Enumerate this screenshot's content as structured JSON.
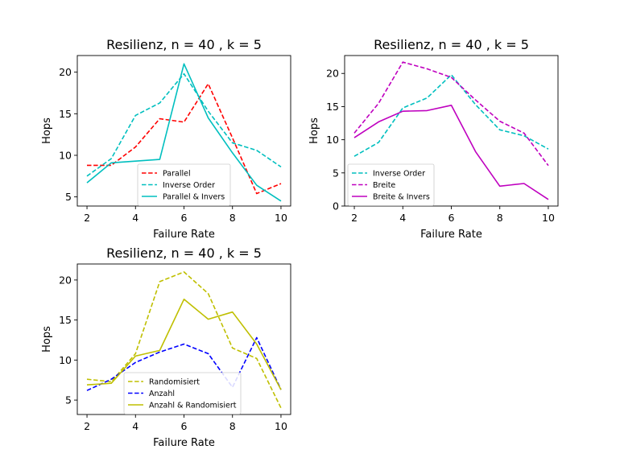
{
  "chart_data": [
    {
      "type": "line",
      "title": "Resilienz, n = 40 , k = 5",
      "xlabel": "Failure Rate",
      "ylabel": "Hops",
      "x": [
        2,
        3,
        4,
        5,
        6,
        7,
        8,
        9,
        10
      ],
      "xlim": [
        1.6,
        10.4
      ],
      "ylim": [
        3.9,
        22.0
      ],
      "xticks": [
        2,
        4,
        6,
        8,
        10
      ],
      "yticks": [
        5,
        10,
        15,
        20
      ],
      "legend": "lower-right",
      "series": [
        {
          "name": "Parallel",
          "color": "#ff0000",
          "style": "dashed",
          "values": [
            8.8,
            8.8,
            11.0,
            14.4,
            14.0,
            18.6,
            12.1,
            5.4,
            6.6
          ]
        },
        {
          "name": "Inverse Order",
          "color": "#00bfbf",
          "style": "dashed",
          "values": [
            7.5,
            9.6,
            14.8,
            16.3,
            19.8,
            15.3,
            11.5,
            10.6,
            8.6
          ]
        },
        {
          "name": "Parallel & Invers",
          "color": "#00bfbf",
          "style": "solid",
          "values": [
            6.7,
            9.1,
            9.3,
            9.5,
            21.0,
            14.5,
            10.3,
            6.4,
            4.5
          ]
        }
      ]
    },
    {
      "type": "line",
      "title": "Resilienz, n = 40 , k = 5",
      "xlabel": "Failure Rate",
      "ylabel": "Hops",
      "x": [
        2,
        3,
        4,
        5,
        6,
        7,
        8,
        9,
        10
      ],
      "xlim": [
        1.6,
        10.4
      ],
      "ylim": [
        0.0,
        22.7
      ],
      "xticks": [
        2,
        4,
        6,
        8,
        10
      ],
      "yticks": [
        0,
        5,
        10,
        15,
        20
      ],
      "legend": "lower-left",
      "series": [
        {
          "name": "Inverse Order",
          "color": "#00bfbf",
          "style": "dashed",
          "values": [
            7.5,
            9.6,
            14.8,
            16.3,
            19.8,
            15.3,
            11.5,
            10.6,
            8.6
          ]
        },
        {
          "name": "Breite",
          "color": "#bf00bf",
          "style": "dashed",
          "values": [
            11.0,
            15.5,
            21.7,
            20.7,
            19.4,
            16.0,
            12.8,
            11.0,
            6.1
          ]
        },
        {
          "name": "Breite & Invers",
          "color": "#bf00bf",
          "style": "solid",
          "values": [
            10.3,
            12.7,
            14.3,
            14.4,
            15.2,
            8.2,
            3.0,
            3.4,
            1.0
          ]
        }
      ]
    },
    {
      "type": "line",
      "title": "Resilienz, n = 40 , k = 5",
      "xlabel": "Failure Rate",
      "ylabel": "Hops",
      "x": [
        2,
        3,
        4,
        5,
        6,
        7,
        8,
        9,
        10
      ],
      "xlim": [
        1.6,
        10.4
      ],
      "ylim": [
        3.2,
        22.0
      ],
      "xticks": [
        2,
        4,
        6,
        8,
        10
      ],
      "yticks": [
        5,
        10,
        15,
        20
      ],
      "legend": "lower-center",
      "series": [
        {
          "name": "Randomisiert",
          "color": "#bfbf00",
          "style": "dashed",
          "values": [
            7.6,
            7.3,
            10.8,
            19.8,
            21.0,
            18.3,
            11.5,
            10.2,
            4.0
          ]
        },
        {
          "name": "Anzahl",
          "color": "#0000ff",
          "style": "dashed",
          "values": [
            6.2,
            7.6,
            9.7,
            11.0,
            12.0,
            10.8,
            6.6,
            12.8,
            6.3
          ]
        },
        {
          "name": "Anzahl & Randomisiert",
          "color": "#bfbf00",
          "style": "solid",
          "values": [
            6.9,
            7.1,
            10.5,
            11.2,
            17.6,
            15.1,
            16.0,
            12.0,
            6.3
          ]
        }
      ]
    }
  ]
}
